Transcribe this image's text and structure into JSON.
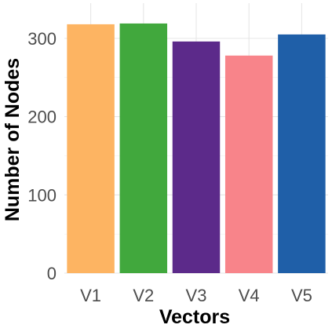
{
  "chart_data": {
    "type": "bar",
    "title": "",
    "xlabel": "Vectors",
    "ylabel": "Number of Nodes",
    "categories": [
      "V1",
      "V2",
      "V3",
      "V4",
      "V5"
    ],
    "values": [
      318,
      319,
      296,
      278,
      305
    ],
    "colors": [
      "#FDB462",
      "#41A83D",
      "#5C2A8A",
      "#F8848A",
      "#1F5FA8"
    ],
    "yticks": [
      0,
      100,
      200,
      300
    ],
    "ylim": [
      0,
      345
    ],
    "grid": true,
    "legend": "none"
  }
}
